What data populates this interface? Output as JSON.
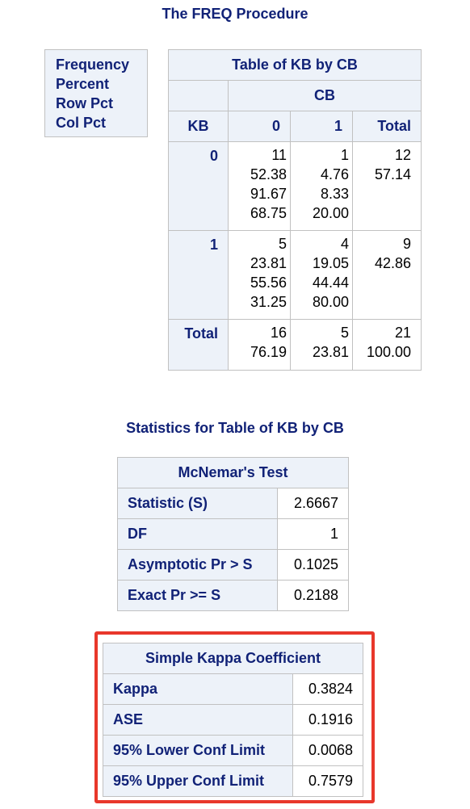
{
  "procedure_title": "The FREQ Procedure",
  "legend": [
    "Frequency",
    "Percent",
    "Row Pct",
    "Col Pct"
  ],
  "crosstab": {
    "title": "Table of KB by CB",
    "col_var": "CB",
    "row_var": "KB",
    "col_headers": [
      "0",
      "1",
      "Total"
    ],
    "rows": [
      {
        "label": "0",
        "cells": [
          [
            "11",
            "52.38",
            "91.67",
            "68.75"
          ],
          [
            "1",
            "4.76",
            "8.33",
            "20.00"
          ],
          [
            "12",
            "57.14"
          ]
        ]
      },
      {
        "label": "1",
        "cells": [
          [
            "5",
            "23.81",
            "55.56",
            "31.25"
          ],
          [
            "4",
            "19.05",
            "44.44",
            "80.00"
          ],
          [
            "9",
            "42.86"
          ]
        ]
      },
      {
        "label": "Total",
        "cells": [
          [
            "16",
            "76.19"
          ],
          [
            "5",
            "23.81"
          ],
          [
            "21",
            "100.00"
          ]
        ]
      }
    ]
  },
  "statistics_title": "Statistics for Table of KB by CB",
  "mcnemar": {
    "title": "McNemar's Test",
    "rows": [
      {
        "label": "Statistic (S)",
        "value": "2.6667"
      },
      {
        "label": "DF",
        "value": "1"
      },
      {
        "label": "Asymptotic Pr > S",
        "value": "0.1025"
      },
      {
        "label": "Exact Pr >= S",
        "value": "0.2188"
      }
    ]
  },
  "kappa": {
    "title": "Simple Kappa Coefficient",
    "rows": [
      {
        "label": "Kappa",
        "value": "0.3824"
      },
      {
        "label": "ASE",
        "value": "0.1916"
      },
      {
        "label": "95% Lower Conf Limit",
        "value": "0.0068"
      },
      {
        "label": "95% Upper Conf Limit",
        "value": "0.7579"
      }
    ]
  },
  "colors": {
    "header_text": "#112277",
    "header_bg": "#EDF2F9",
    "border": "#C1C1C1",
    "highlight": "#E8372B"
  }
}
